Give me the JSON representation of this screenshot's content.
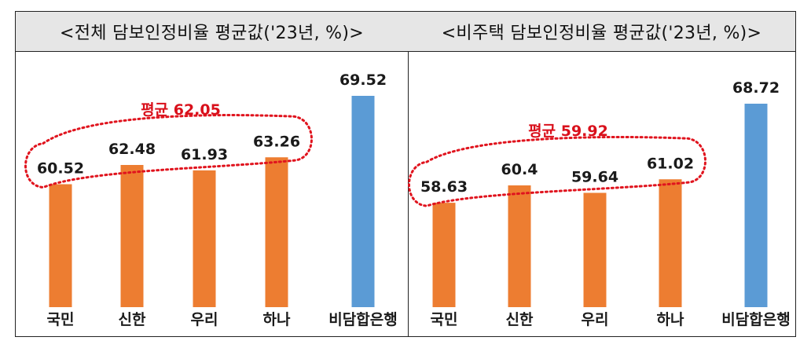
{
  "colors": {
    "bank_bar": "#ed7d31",
    "nonbank_bar": "#5b9bd5",
    "avg_outline": "#e0141e",
    "avg_text": "#d9101b"
  },
  "chart_data": [
    {
      "type": "bar",
      "title": "<전체 담보인정비율 평균값('23년, %)>",
      "categories": [
        "국민",
        "신한",
        "우리",
        "하나",
        "비담합은행"
      ],
      "values": [
        60.52,
        62.48,
        61.93,
        63.26,
        69.52
      ],
      "value_labels": [
        "60.52",
        "62.48",
        "61.93",
        "63.26",
        "69.52"
      ],
      "average_label": "평균 62.05",
      "average": 62.05,
      "ylim": [
        48,
        72
      ],
      "grid": false,
      "legend": "none"
    },
    {
      "type": "bar",
      "title": "<비주택 담보인정비율 평균값('23년, %)>",
      "categories": [
        "국민",
        "신한",
        "우리",
        "하나",
        "비담합은행"
      ],
      "values": [
        58.63,
        60.4,
        59.64,
        61.02,
        68.72
      ],
      "value_labels": [
        "58.63",
        "60.4",
        "59.64",
        "61.02",
        "68.72"
      ],
      "average_label": "평균 59.92",
      "average": 59.92,
      "ylim": [
        48,
        72
      ],
      "grid": false,
      "legend": "none"
    }
  ]
}
